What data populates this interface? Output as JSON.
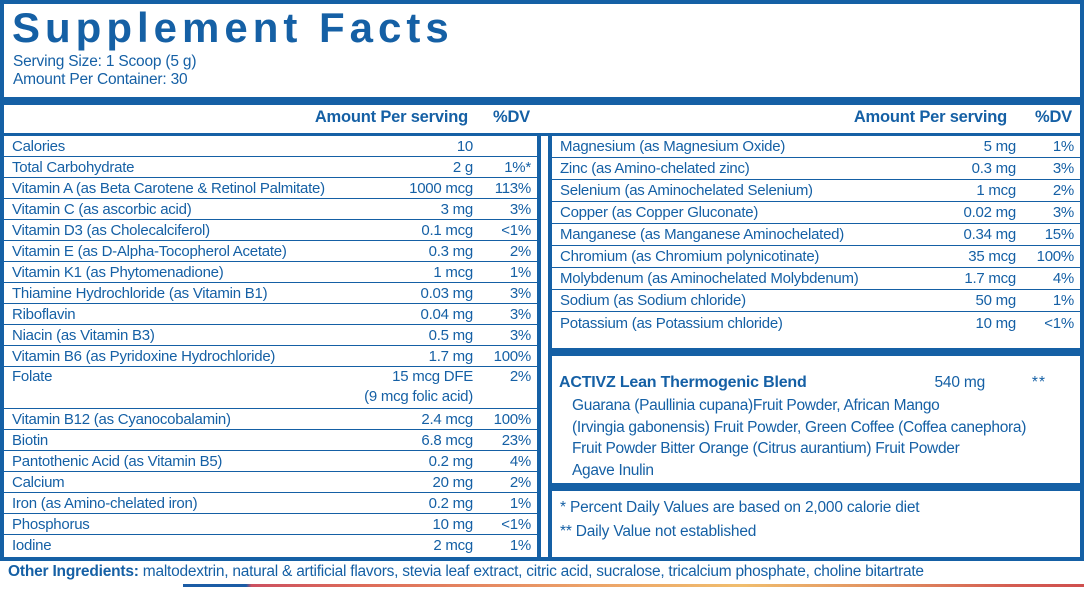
{
  "header": {
    "title": "Supplement Facts",
    "serving_size": "Serving Size: 1 Scoop (5 g)",
    "amount_per_container": "Amount Per Container: 30"
  },
  "columns_header": {
    "amount_label": "Amount Per serving",
    "dv_label": "%DV"
  },
  "left_table": {
    "rows": [
      {
        "name": "Calories",
        "amount": "10",
        "dv": ""
      },
      {
        "name": "Total Carbohydrate",
        "amount": "2 g",
        "dv": "1%*"
      },
      {
        "name": "Vitamin A (as Beta Carotene & Retinol Palmitate)",
        "amount": "1000 mcg",
        "dv": "113%"
      },
      {
        "name": "Vitamin C (as ascorbic acid)",
        "amount": "3 mg",
        "dv": "3%"
      },
      {
        "name": "Vitamin D3 (as Cholecalciferol)",
        "amount": "0.1 mcg",
        "dv": "<1%"
      },
      {
        "name": "Vitamin E (as D-Alpha-Tocopherol Acetate)",
        "amount": "0.3 mg",
        "dv": "2%"
      },
      {
        "name": "Vitamin K1 (as Phytomenadione)",
        "amount": "1 mcg",
        "dv": "1%"
      },
      {
        "name": "Thiamine Hydrochloride (as Vitamin B1)",
        "amount": "0.03 mg",
        "dv": "3%"
      },
      {
        "name": "Riboflavin",
        "amount": "0.04 mg",
        "dv": "3%"
      },
      {
        "name": "Niacin (as Vitamin B3)",
        "amount": "0.5 mg",
        "dv": "3%"
      },
      {
        "name": "Vitamin B6 (as Pyridoxine Hydrochloride)",
        "amount": "1.7 mg",
        "dv": "100%"
      },
      {
        "name": "Folate",
        "amount": "15 mcg DFE",
        "amount2": "(9 mcg folic acid)",
        "dv": "2%"
      },
      {
        "name": "Vitamin B12 (as Cyanocobalamin)",
        "amount": "2.4 mcg",
        "dv": "100%"
      },
      {
        "name": "Biotin",
        "amount": "6.8 mcg",
        "dv": "23%"
      },
      {
        "name": "Pantothenic Acid (as Vitamin B5)",
        "amount": "0.2 mg",
        "dv": "4%"
      },
      {
        "name": "Calcium",
        "amount": "20 mg",
        "dv": "2%"
      },
      {
        "name": "Iron (as Amino-chelated iron)",
        "amount": "0.2 mg",
        "dv": "1%"
      },
      {
        "name": "Phosphorus",
        "amount": "10 mg",
        "dv": "<1%"
      },
      {
        "name": "Iodine",
        "amount": "2 mcg",
        "dv": "1%"
      }
    ]
  },
  "right_table": {
    "rows": [
      {
        "name": "Magnesium (as Magnesium Oxide)",
        "amount": "5 mg",
        "dv": "1%"
      },
      {
        "name": "Zinc (as Amino-chelated zinc)",
        "amount": "0.3 mg",
        "dv": "3%"
      },
      {
        "name": "Selenium (as Aminochelated Selenium)",
        "amount": "1 mcg",
        "dv": "2%"
      },
      {
        "name": "Copper (as Copper Gluconate)",
        "amount": "0.02 mg",
        "dv": "3%"
      },
      {
        "name": "Manganese (as Manganese Aminochelated)",
        "amount": "0.34 mg",
        "dv": "15%"
      },
      {
        "name": "Chromium (as Chromium polynicotinate)",
        "amount": "35 mcg",
        "dv": "100%"
      },
      {
        "name": "Molybdenum (as Aminochelated Molybdenum)",
        "amount": "1.7 mcg",
        "dv": "4%"
      },
      {
        "name": "Sodium (as Sodium chloride)",
        "amount": "50 mg",
        "dv": "1%"
      },
      {
        "name": "Potassium (as Potassium chloride)",
        "amount": "10 mg",
        "dv": "<1%"
      }
    ]
  },
  "blend": {
    "title": "ACTIVZ Lean Thermogenic Blend",
    "amount": "540 mg",
    "dv": "**",
    "lines": [
      "Guarana (Paullinia cupana)Fruit Powder, African Mango",
      "(Irvingia gabonensis) Fruit Powder, Green Coffee (Coffea canephora)",
      "Fruit Powder Bitter Orange (Citrus aurantium) Fruit Powder",
      "Agave Inulin"
    ]
  },
  "footnotes": [
    "* Percent Daily Values are based on 2,000 calorie diet",
    "** Daily Value not established"
  ],
  "other_ingredients": {
    "label": "Other Ingredients:",
    "text": " maltodextrin, natural & artificial flavors, stevia leaf extract, citric acid, sucralose, tricalcium phosphate, choline bitartrate"
  },
  "colors": {
    "accent_blue": "#1560a5",
    "strip_blue": "#1b5ca5",
    "strip_red": "#cc5060",
    "strip_orange": "#eca268",
    "strip_yellow": "#f0bd6d"
  }
}
